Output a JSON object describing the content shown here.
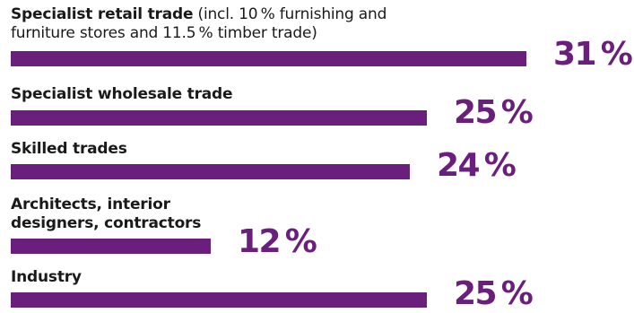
{
  "chart_data": {
    "type": "bar",
    "orientation": "horizontal",
    "categories": [
      "Specialist retail trade",
      "Specialist wholesale trade",
      "Skilled trades",
      "Architects, interior designers, contractors",
      "Industry"
    ],
    "category_notes": [
      "(incl. 10 % furnishing and furniture stores and 11.5 % timber trade)",
      "",
      "",
      "",
      ""
    ],
    "values": [
      31,
      25,
      24,
      12,
      25
    ],
    "value_labels": [
      "31 %",
      "25 %",
      "24 %",
      "12 %",
      "25 %"
    ],
    "unit": "%",
    "grid": false,
    "legend": "none",
    "colors": {
      "bar": "#6b1f7c",
      "value_text": "#6b1f7c",
      "label_text": "#1a1a1a"
    }
  }
}
